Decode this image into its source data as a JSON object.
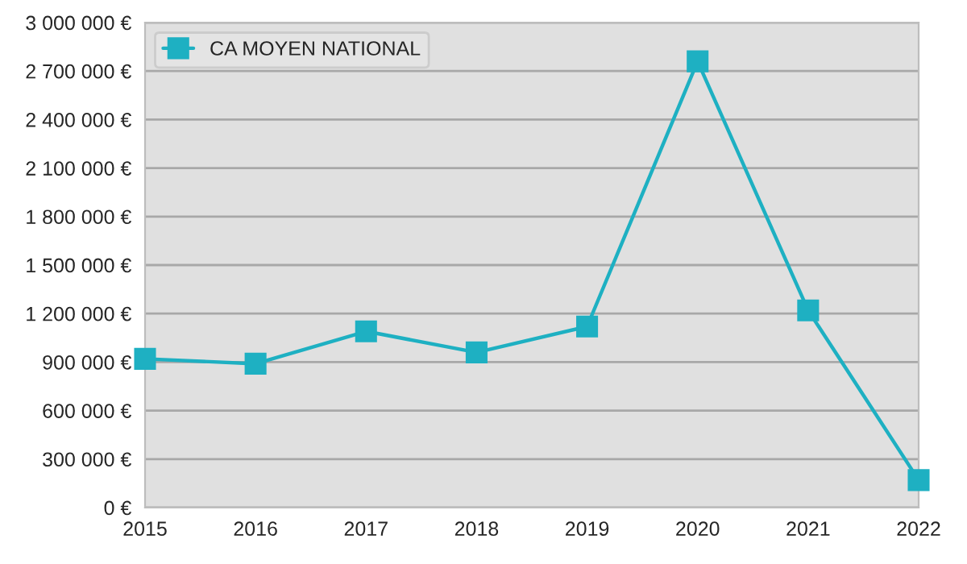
{
  "chart_data": {
    "type": "line",
    "x": [
      2015,
      2016,
      2017,
      2018,
      2019,
      2020,
      2021,
      2022
    ],
    "series": [
      {
        "name": "CA MOYEN NATIONAL",
        "color": "#1eb0c2",
        "values": [
          920000,
          890000,
          1090000,
          960000,
          1120000,
          2760000,
          1220000,
          170000
        ]
      }
    ],
    "xlim": [
      2015,
      2022
    ],
    "xticks": [
      2015,
      2016,
      2017,
      2018,
      2019,
      2020,
      2021,
      2022
    ],
    "ylim": [
      0,
      3000000
    ],
    "yticks": [
      {
        "value": 0,
        "label": "0 €"
      },
      {
        "value": 300000,
        "label": "300 000 €"
      },
      {
        "value": 600000,
        "label": "600 000 €"
      },
      {
        "value": 900000,
        "label": "900 000 €"
      },
      {
        "value": 1200000,
        "label": "1 200 000 €"
      },
      {
        "value": 1500000,
        "label": "1 500 000 €"
      },
      {
        "value": 1800000,
        "label": "1 800 000 €"
      },
      {
        "value": 2100000,
        "label": "2 100 000 €"
      },
      {
        "value": 2400000,
        "label": "2 400 000 €"
      },
      {
        "value": 2700000,
        "label": "2 700 000 €"
      },
      {
        "value": 3000000,
        "label": "3 000 000 €"
      }
    ],
    "grid": "y",
    "legend": "top left",
    "marker": "square",
    "line_style": "solid"
  }
}
